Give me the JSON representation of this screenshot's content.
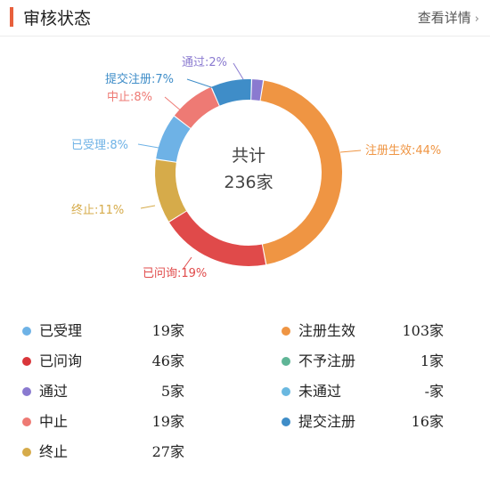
{
  "header": {
    "title": "审核状态",
    "link_label": "查看详情",
    "chevron": "›"
  },
  "chart_data": {
    "type": "pie",
    "center_line1": "共计",
    "center_line2": "236家",
    "slices": [
      {
        "label": "注册生效:44%",
        "value": 44,
        "color": "#ef9543"
      },
      {
        "label": "已问询:19%",
        "value": 19,
        "color": "#e04a4a"
      },
      {
        "label": "终止:11%",
        "value": 11,
        "color": "#d6ab4a"
      },
      {
        "label": "已受理:8%",
        "value": 8,
        "color": "#6eb2e6"
      },
      {
        "label": "中止:8%",
        "value": 8,
        "color": "#ee7a74"
      },
      {
        "label": "提交注册:7%",
        "value": 7,
        "color": "#3f8dc8"
      },
      {
        "label": "通过:2%",
        "value": 2,
        "color": "#8a7ad0"
      }
    ]
  },
  "legend": {
    "left": [
      {
        "name": "已受理",
        "value": "19家",
        "color": "#6eb2e6"
      },
      {
        "name": "已问询",
        "value": "46家",
        "color": "#d9363a"
      },
      {
        "name": "通过",
        "value": "5家",
        "color": "#8a7ad0"
      },
      {
        "name": "中止",
        "value": "19家",
        "color": "#ee7a74"
      },
      {
        "name": "终止",
        "value": "27家",
        "color": "#d6ab4a"
      }
    ],
    "right": [
      {
        "name": "注册生效",
        "value": "103家",
        "color": "#ef9543"
      },
      {
        "name": "不予注册",
        "value": "1家",
        "color": "#5fb596"
      },
      {
        "name": "未通过",
        "value": "-家",
        "color": "#6ab8e0"
      },
      {
        "name": "提交注册",
        "value": "16家",
        "color": "#3f8dc8"
      }
    ]
  }
}
